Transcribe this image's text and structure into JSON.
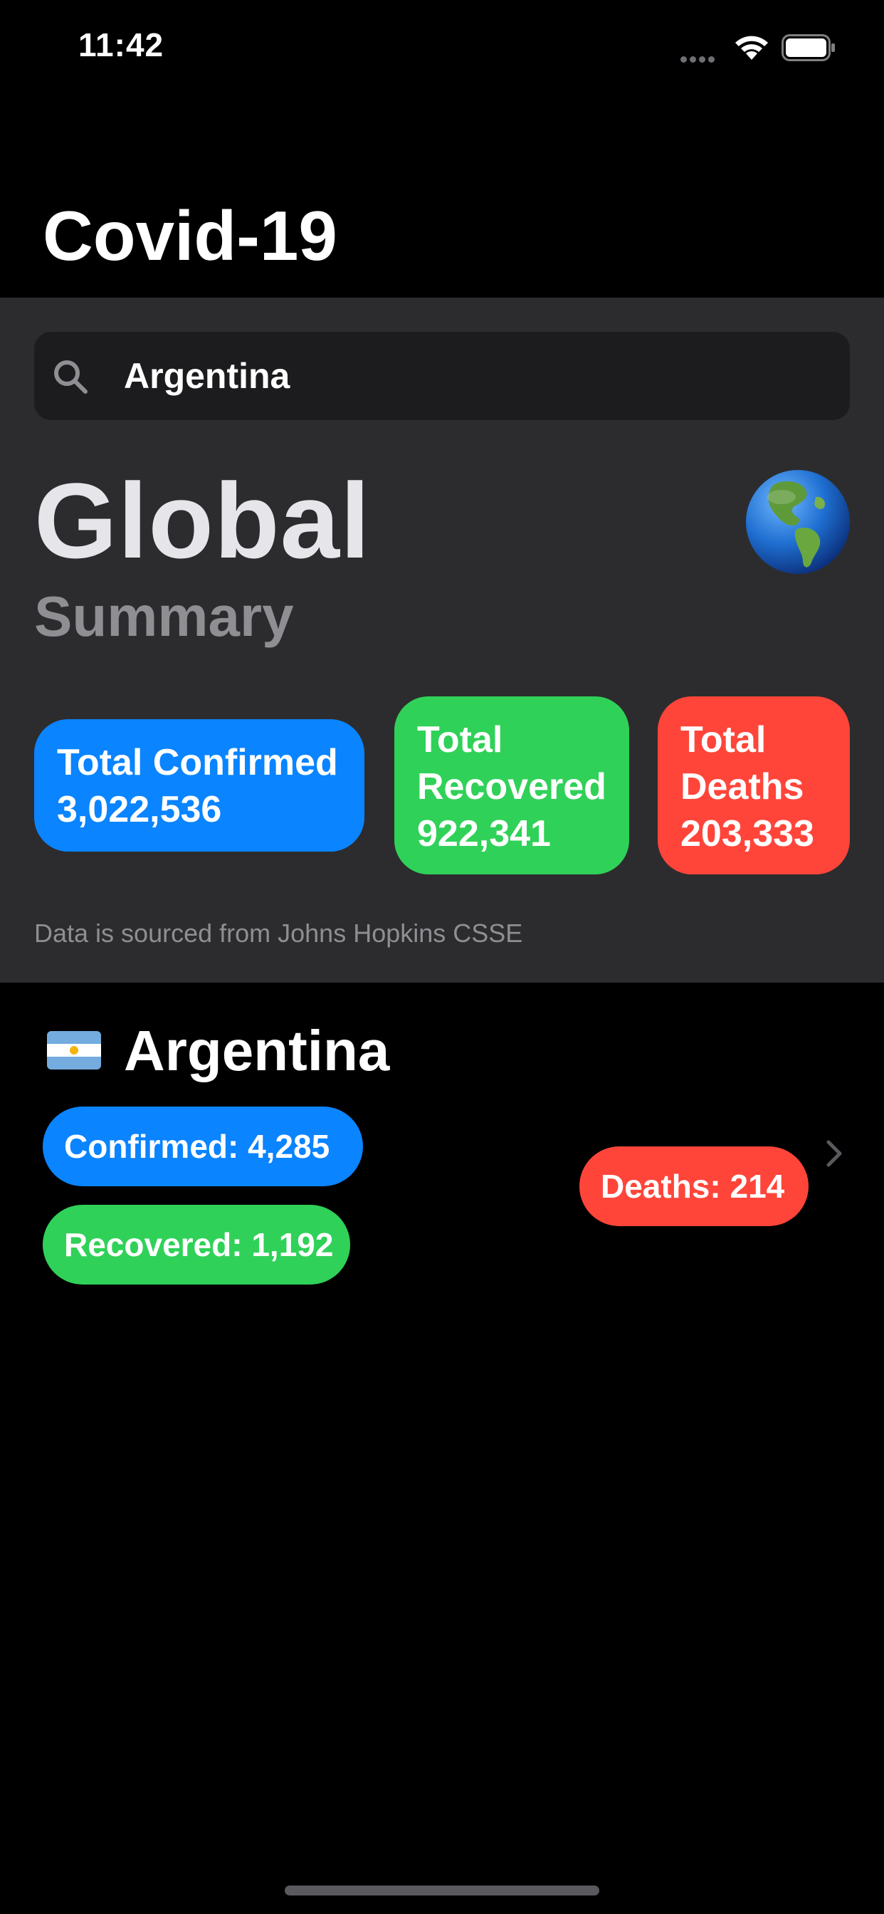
{
  "status_bar": {
    "time": "11:42"
  },
  "navigation": {
    "title": "Covid-19"
  },
  "search": {
    "value": "Argentina"
  },
  "summary": {
    "heading": "Global",
    "subheading": "Summary",
    "globe_icon": "globe-americas-icon",
    "cards": {
      "confirmed": {
        "line1": "Total Confirmed",
        "value": "3,022,536"
      },
      "recovered": {
        "line1": "Total",
        "line2": "Recovered",
        "value": "922,341"
      },
      "deaths": {
        "line1": "Total",
        "line2": "Deaths",
        "value": "203,333"
      }
    },
    "source_note": "Data is sourced from Johns Hopkins CSSE"
  },
  "country": {
    "flag_icon": "argentina-flag-icon",
    "name": "Argentina",
    "confirmed_label": "Confirmed: 4,285",
    "recovered_label": "Recovered: 1,192",
    "deaths_label": "Deaths: 214"
  },
  "colors": {
    "blue": "#0a84ff",
    "green": "#30d158",
    "red": "#ff453a",
    "panel": "#2c2c2e",
    "search_bg": "#1c1c1e"
  }
}
